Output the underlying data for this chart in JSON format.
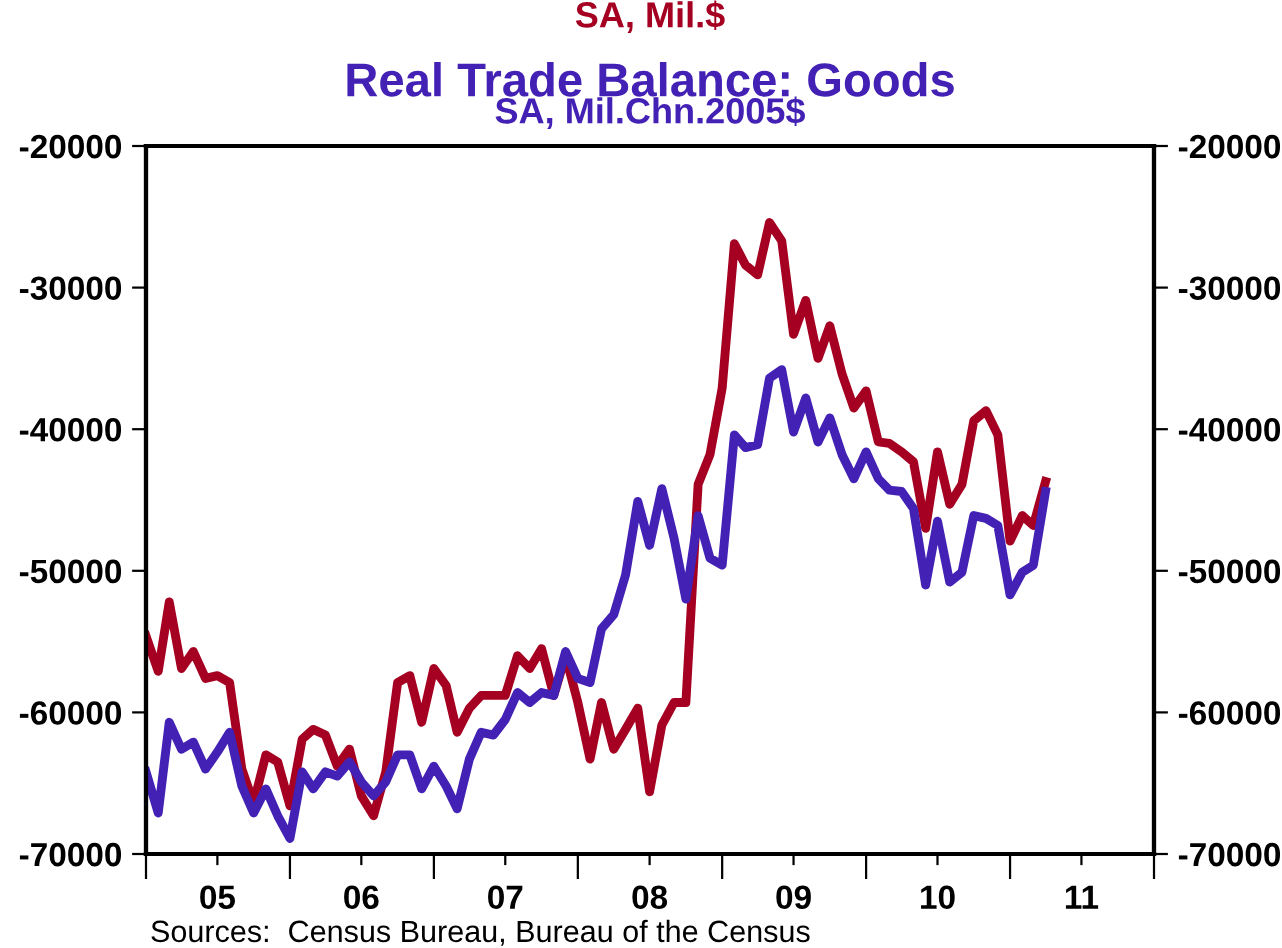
{
  "chart_data": {
    "type": "line",
    "title": "Real Trade Balance: Goods",
    "subtitle": "SA, Mil.Chn.2005$",
    "annotations": [
      "SA, Mil.$",
      "Sources:  Census Bureau, Bureau of the Census"
    ],
    "x": [
      "2005-01",
      "2005-02",
      "2005-03",
      "2005-04",
      "2005-05",
      "2005-06",
      "2005-07",
      "2005-08",
      "2005-09",
      "2005-10",
      "2005-11",
      "2005-12",
      "2006-01",
      "2006-02",
      "2006-03",
      "2006-04",
      "2006-05",
      "2006-06",
      "2006-07",
      "2006-08",
      "2006-09",
      "2006-10",
      "2006-11",
      "2006-12",
      "2007-01",
      "2007-02",
      "2007-03",
      "2007-04",
      "2007-05",
      "2007-06",
      "2007-07",
      "2007-08",
      "2007-09",
      "2007-10",
      "2007-11",
      "2007-12",
      "2008-01",
      "2008-02",
      "2008-03",
      "2008-04",
      "2008-05",
      "2008-06",
      "2008-07",
      "2008-08",
      "2008-09",
      "2008-10",
      "2008-11",
      "2008-12",
      "2009-01",
      "2009-02",
      "2009-03",
      "2009-04",
      "2009-05",
      "2009-06",
      "2009-07",
      "2009-08",
      "2009-09",
      "2009-10",
      "2009-11",
      "2009-12",
      "2010-01",
      "2010-02",
      "2010-03",
      "2010-04",
      "2010-05",
      "2010-06",
      "2010-07",
      "2010-08",
      "2010-09",
      "2010-10",
      "2010-11",
      "2010-12",
      "2011-01",
      "2011-02",
      "2011-03",
      "2011-04"
    ],
    "series": [
      {
        "color": "#a50021",
        "values": [
          -54600,
          -57100,
          -52200,
          -56900,
          -55700,
          -57600,
          -57400,
          -57900,
          -64000,
          -66400,
          -63000,
          -63500,
          -66600,
          -61900,
          -61200,
          -61600,
          -63800,
          -62600,
          -65900,
          -67300,
          -64200,
          -57900,
          -57400,
          -60700,
          -56900,
          -58100,
          -61400,
          -59700,
          -58800,
          -58800,
          -58800,
          -56000,
          -56900,
          -55500,
          -58800,
          -56000,
          -59300,
          -63300,
          -59300,
          -62600,
          -61200,
          -59700,
          -65600,
          -60900,
          -59300,
          -59300,
          -43900,
          -41800,
          -37100,
          -26900,
          -28400,
          -29100,
          -25400,
          -26700,
          -33300,
          -30900,
          -35000,
          -32700,
          -36100,
          -38500,
          -37300,
          -40900,
          -41000,
          -41600,
          -42300,
          -47000,
          -41600,
          -45300,
          -43900,
          -39400,
          -38700,
          -40400,
          -47900,
          -46100,
          -46800,
          -43700
        ]
      },
      {
        "color": "#4321b5",
        "values": [
          -64200,
          -67100,
          -60700,
          -62600,
          -62100,
          -64000,
          -62800,
          -61400,
          -65200,
          -67100,
          -65400,
          -67300,
          -68900,
          -64200,
          -65400,
          -64200,
          -64500,
          -63500,
          -64900,
          -65900,
          -64900,
          -63000,
          -63000,
          -65400,
          -63800,
          -65200,
          -66800,
          -63300,
          -61400,
          -61600,
          -60500,
          -58600,
          -59300,
          -58600,
          -58800,
          -55700,
          -57600,
          -57900,
          -54100,
          -53100,
          -50300,
          -45100,
          -48200,
          -44200,
          -47700,
          -52000,
          -46100,
          -49100,
          -49600,
          -40400,
          -41300,
          -41100,
          -36400,
          -35800,
          -40200,
          -37800,
          -40900,
          -39200,
          -41800,
          -43500,
          -41600,
          -43500,
          -44300,
          -44400,
          -45600,
          -51000,
          -46500,
          -50800,
          -50100,
          -46100,
          -46300,
          -46800,
          -51700,
          -50100,
          -49600,
          -44400
        ]
      }
    ],
    "xlim": [
      "2005-01",
      "2012-01"
    ],
    "xticks": [
      {
        "value": "2005-01",
        "label": null
      },
      {
        "value": "2005-07",
        "label": "05"
      },
      {
        "value": "2006-01",
        "label": null
      },
      {
        "value": "2006-07",
        "label": "06"
      },
      {
        "value": "2007-01",
        "label": null
      },
      {
        "value": "2007-07",
        "label": "07"
      },
      {
        "value": "2008-01",
        "label": null
      },
      {
        "value": "2008-07",
        "label": "08"
      },
      {
        "value": "2009-01",
        "label": null
      },
      {
        "value": "2009-07",
        "label": "09"
      },
      {
        "value": "2010-01",
        "label": null
      },
      {
        "value": "2010-07",
        "label": "10"
      },
      {
        "value": "2011-01",
        "label": null
      },
      {
        "value": "2011-07",
        "label": "11"
      },
      {
        "value": "2012-01",
        "label": null
      }
    ],
    "ylim": [
      -70000,
      -20000
    ],
    "yticks": [
      -70000,
      -60000,
      -50000,
      -40000,
      -30000,
      -20000
    ],
    "y2lim": [
      -70000,
      -20000
    ],
    "y2ticks": [
      -70000,
      -60000,
      -50000,
      -40000,
      -30000,
      -20000
    ],
    "grid": false,
    "legend": false,
    "marker": "none",
    "line_style": "solid"
  }
}
